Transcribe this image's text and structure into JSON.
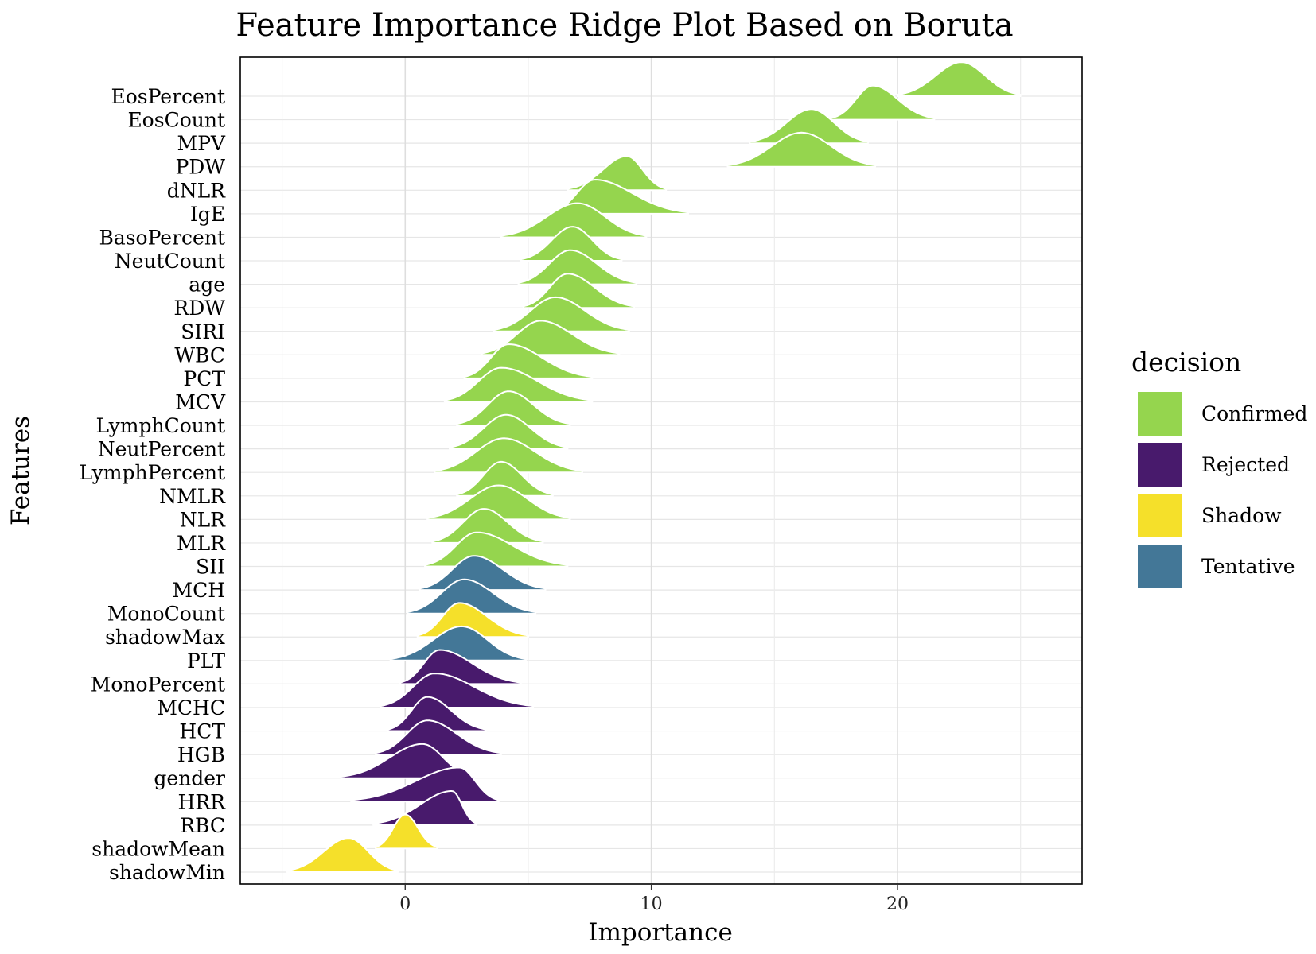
{
  "chart_data": {
    "type": "area",
    "subtype": "ridgeline",
    "title": "Feature Importance Ridge Plot Based on Boruta",
    "xlabel": "Importance",
    "ylabel": "Features",
    "xlim": [
      -6.7,
      27.5
    ],
    "x_ticks": [
      0,
      10,
      20
    ],
    "grid": true,
    "legend": {
      "title": "decision",
      "position": "right",
      "entries": [
        {
          "label": "Confirmed",
          "color": "#95d54e"
        },
        {
          "label": "Rejected",
          "color": "#481a6c"
        },
        {
          "label": "Shadow",
          "color": "#f5e02a"
        },
        {
          "label": "Tentative",
          "color": "#437797"
        }
      ]
    },
    "series": [
      {
        "feature": "EosPercent",
        "decision": "Confirmed",
        "peak": 22.6,
        "min": 20.0,
        "max": 25.0
      },
      {
        "feature": "EosCount",
        "decision": "Confirmed",
        "peak": 19.0,
        "min": 17.3,
        "max": 21.5
      },
      {
        "feature": "MPV",
        "decision": "Confirmed",
        "peak": 16.5,
        "min": 14.0,
        "max": 18.8
      },
      {
        "feature": "PDW",
        "decision": "Confirmed",
        "peak": 16.1,
        "min": 13.1,
        "max": 19.1
      },
      {
        "feature": "dNLR",
        "decision": "Confirmed",
        "peak": 9.0,
        "min": 6.6,
        "max": 10.6
      },
      {
        "feature": "IgE",
        "decision": "Confirmed",
        "peak": 7.7,
        "min": 5.9,
        "max": 11.5
      },
      {
        "feature": "BasoPercent",
        "decision": "Confirmed",
        "peak": 7.0,
        "min": 3.9,
        "max": 9.8
      },
      {
        "feature": "NeutCount",
        "decision": "Confirmed",
        "peak": 6.8,
        "min": 4.7,
        "max": 8.8
      },
      {
        "feature": "age",
        "decision": "Confirmed",
        "peak": 6.7,
        "min": 4.6,
        "max": 9.4
      },
      {
        "feature": "RDW",
        "decision": "Confirmed",
        "peak": 6.6,
        "min": 4.8,
        "max": 9.3
      },
      {
        "feature": "SIRI",
        "decision": "Confirmed",
        "peak": 6.1,
        "min": 3.6,
        "max": 9.1
      },
      {
        "feature": "WBC",
        "decision": "Confirmed",
        "peak": 5.5,
        "min": 3.1,
        "max": 8.7
      },
      {
        "feature": "PCT",
        "decision": "Confirmed",
        "peak": 4.2,
        "min": 2.4,
        "max": 7.6
      },
      {
        "feature": "MCV",
        "decision": "Confirmed",
        "peak": 3.9,
        "min": 1.6,
        "max": 7.6
      },
      {
        "feature": "LymphCount",
        "decision": "Confirmed",
        "peak": 4.2,
        "min": 2.1,
        "max": 6.7
      },
      {
        "feature": "NeutPercent",
        "decision": "Confirmed",
        "peak": 4.1,
        "min": 1.8,
        "max": 6.6
      },
      {
        "feature": "LymphPercent",
        "decision": "Confirmed",
        "peak": 4.0,
        "min": 1.2,
        "max": 7.2
      },
      {
        "feature": "NMLR",
        "decision": "Confirmed",
        "peak": 3.9,
        "min": 2.1,
        "max": 6.0
      },
      {
        "feature": "NLR",
        "decision": "Confirmed",
        "peak": 3.8,
        "min": 0.9,
        "max": 6.7
      },
      {
        "feature": "MLR",
        "decision": "Confirmed",
        "peak": 3.2,
        "min": 1.1,
        "max": 5.6
      },
      {
        "feature": "SII",
        "decision": "Confirmed",
        "peak": 2.9,
        "min": 0.8,
        "max": 6.6
      },
      {
        "feature": "MCH",
        "decision": "Tentative",
        "peak": 2.8,
        "min": 0.6,
        "max": 5.7
      },
      {
        "feature": "MonoCount",
        "decision": "Tentative",
        "peak": 2.4,
        "min": 0.1,
        "max": 5.3
      },
      {
        "feature": "shadowMax",
        "decision": "Shadow",
        "peak": 2.2,
        "min": 0.5,
        "max": 5.0
      },
      {
        "feature": "PLT",
        "decision": "Tentative",
        "peak": 2.3,
        "min": -0.6,
        "max": 4.9
      },
      {
        "feature": "MonoPercent",
        "decision": "Rejected",
        "peak": 1.4,
        "min": -0.2,
        "max": 4.7
      },
      {
        "feature": "MCHC",
        "decision": "Rejected",
        "peak": 1.2,
        "min": -1.0,
        "max": 5.2
      },
      {
        "feature": "HCT",
        "decision": "Rejected",
        "peak": 0.9,
        "min": -0.7,
        "max": 3.3
      },
      {
        "feature": "HGB",
        "decision": "Rejected",
        "peak": 0.9,
        "min": -1.2,
        "max": 3.9
      },
      {
        "feature": "gender",
        "decision": "Rejected",
        "peak": 0.7,
        "min": -2.6,
        "max": 2.8
      },
      {
        "feature": "HRR",
        "decision": "Rejected",
        "peak": 2.2,
        "min": -2.2,
        "max": 3.8
      },
      {
        "feature": "RBC",
        "decision": "Rejected",
        "peak": 1.9,
        "min": -1.3,
        "max": 2.9
      },
      {
        "feature": "shadowMean",
        "decision": "Shadow",
        "peak": 0.0,
        "min": -1.2,
        "max": 1.3
      },
      {
        "feature": "shadowMin",
        "decision": "Shadow",
        "peak": -2.3,
        "min": -4.8,
        "max": -0.3
      }
    ]
  }
}
